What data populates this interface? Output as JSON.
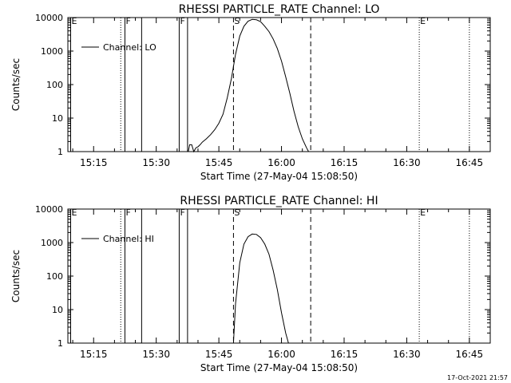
{
  "footer_date": "17-Oct-2021 21:57",
  "chart_data": [
    {
      "type": "line",
      "title": "RHESSI PARTICLE_RATE Channel: LO",
      "xlabel": "Start Time (27-May-04 15:08:50)",
      "ylabel": "Counts/sec",
      "yscale": "log",
      "xlim": [
        "15:08:50",
        "16:50:00"
      ],
      "ylim": [
        1,
        10000
      ],
      "xticks": [
        "15:15",
        "15:30",
        "15:45",
        "16:00",
        "16:15",
        "16:30",
        "16:45"
      ],
      "yticks": [
        "1",
        "10",
        "100",
        "1000",
        "10000"
      ],
      "legend": {
        "label": "Channel: LO",
        "position": "top-left"
      },
      "annotations": [
        {
          "label": "E",
          "time": "15:09:30",
          "style": "solid"
        },
        {
          "label": "",
          "time": "15:21:30",
          "style": "dotted"
        },
        {
          "label": "F",
          "time": "15:22:30",
          "style": "solid"
        },
        {
          "label": "",
          "time": "15:26:30",
          "style": "solid"
        },
        {
          "label": "F",
          "time": "15:35:30",
          "style": "solid"
        },
        {
          "label": "",
          "time": "15:37:30",
          "style": "solid"
        },
        {
          "label": "S",
          "time": "15:48:30",
          "style": "dashed"
        },
        {
          "label": "",
          "time": "16:07:00",
          "style": "dashed"
        },
        {
          "label": "E",
          "time": "16:33:00",
          "style": "dotted"
        },
        {
          "label": "",
          "time": "16:45:00",
          "style": "dotted"
        }
      ],
      "series": [
        {
          "name": "Channel: LO",
          "segments": [
            {
              "x": [
                "15:37:40",
                "15:38:00",
                "15:38:30",
                "15:39:00",
                "15:39:30",
                "15:40:00",
                "15:40:30",
                "15:41:00",
                "15:42:00",
                "15:43:00",
                "15:44:00",
                "15:45:00",
                "15:46:00",
                "15:47:00",
                "15:48:00",
                "15:49:00",
                "15:50:00",
                "15:51:00",
                "15:52:00",
                "15:53:00",
                "15:54:00",
                "15:55:00",
                "15:56:00",
                "15:57:00",
                "15:58:00",
                "15:59:00",
                "16:00:00",
                "16:01:00",
                "16:02:00",
                "16:03:00",
                "16:04:00",
                "16:05:00",
                "16:06:00",
                "16:06:30"
              ],
              "y": [
                1,
                1.6,
                1.6,
                1,
                1.3,
                1.4,
                1.6,
                1.9,
                2.4,
                3.2,
                4.5,
                7,
                13,
                40,
                150,
                800,
                2800,
                5500,
                7800,
                8800,
                8600,
                7500,
                5500,
                3800,
                2300,
                1200,
                500,
                170,
                55,
                16,
                5.5,
                2.4,
                1.3,
                1
              ]
            }
          ]
        }
      ]
    },
    {
      "type": "line",
      "title": "RHESSI PARTICLE_RATE Channel: HI",
      "xlabel": "Start Time (27-May-04 15:08:50)",
      "ylabel": "Counts/sec",
      "yscale": "log",
      "xlim": [
        "15:08:50",
        "16:50:00"
      ],
      "ylim": [
        1,
        10000
      ],
      "xticks": [
        "15:15",
        "15:30",
        "15:45",
        "16:00",
        "16:15",
        "16:30",
        "16:45"
      ],
      "yticks": [
        "1",
        "10",
        "100",
        "1000",
        "10000"
      ],
      "legend": {
        "label": "Channel: HI",
        "position": "top-left"
      },
      "annotations": [
        {
          "label": "E",
          "time": "15:09:30",
          "style": "solid"
        },
        {
          "label": "",
          "time": "15:21:30",
          "style": "dotted"
        },
        {
          "label": "F",
          "time": "15:22:30",
          "style": "solid"
        },
        {
          "label": "",
          "time": "15:26:30",
          "style": "solid"
        },
        {
          "label": "F",
          "time": "15:35:30",
          "style": "solid"
        },
        {
          "label": "",
          "time": "15:37:30",
          "style": "solid"
        },
        {
          "label": "S",
          "time": "15:48:30",
          "style": "dashed"
        },
        {
          "label": "",
          "time": "16:07:00",
          "style": "dashed"
        },
        {
          "label": "E",
          "time": "16:33:00",
          "style": "dotted"
        },
        {
          "label": "",
          "time": "16:45:00",
          "style": "dotted"
        }
      ],
      "series": [
        {
          "name": "Channel: HI",
          "segments": [
            {
              "x": [
                "15:48:30",
                "15:49:00",
                "15:50:00",
                "15:51:00",
                "15:52:00",
                "15:53:00",
                "15:54:00",
                "15:55:00",
                "15:56:00",
                "15:57:00",
                "15:58:00",
                "15:59:00",
                "16:00:00",
                "16:01:00",
                "16:01:40"
              ],
              "y": [
                1,
                15,
                250,
                900,
                1500,
                1800,
                1750,
                1400,
                900,
                450,
                150,
                40,
                8,
                2,
                1
              ]
            }
          ]
        }
      ]
    }
  ]
}
